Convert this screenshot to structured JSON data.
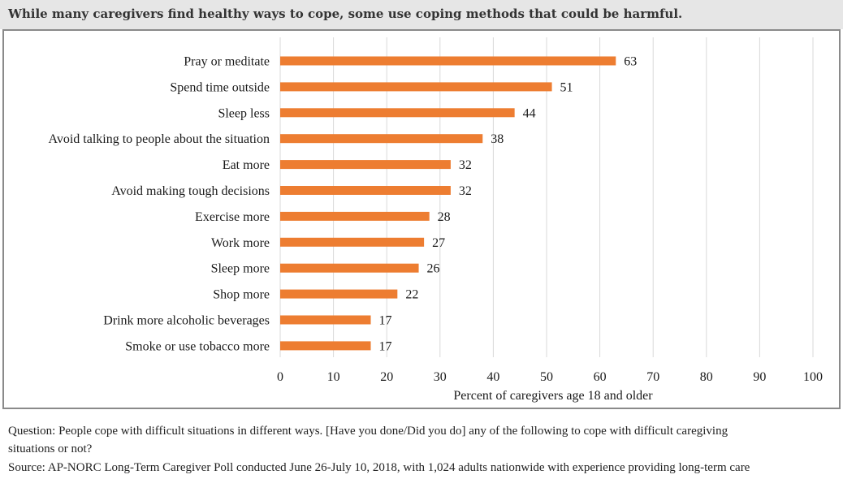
{
  "header": {
    "title": "While many caregivers find healthy ways to cope, some use coping methods that could be harmful."
  },
  "colors": {
    "bar": "#ed7d31",
    "grid": "#d9d9d9",
    "header_bg": "#e6e6e6",
    "frame": "#8a8a8a"
  },
  "chart_data": {
    "type": "bar",
    "orientation": "horizontal",
    "categories": [
      "Pray or meditate",
      "Spend time outside",
      "Sleep less",
      "Avoid talking to people about the situation",
      "Eat more",
      "Avoid making tough decisions",
      "Exercise more",
      "Work more",
      "Sleep more",
      "Shop more",
      "Drink more alcoholic beverages",
      "Smoke or use tobacco more"
    ],
    "values": [
      63,
      51,
      44,
      38,
      32,
      32,
      28,
      27,
      26,
      22,
      17,
      17
    ],
    "xlabel": "Percent of caregivers age 18 and older",
    "xlim": [
      0,
      100
    ],
    "xticks": [
      0,
      10,
      20,
      30,
      40,
      50,
      60,
      70,
      80,
      90,
      100
    ],
    "grid": true,
    "data_labels": true
  },
  "footnotes": {
    "question_line1": "Question: People cope with difficult situations in different ways. [Have you done/Did you do] any of the following to cope with difficult caregiving",
    "question_line2": "situations or not?",
    "source": "Source: AP-NORC Long-Term Caregiver Poll conducted June 26-July 10, 2018, with 1,024 adults nationwide with experience providing long-term care"
  }
}
